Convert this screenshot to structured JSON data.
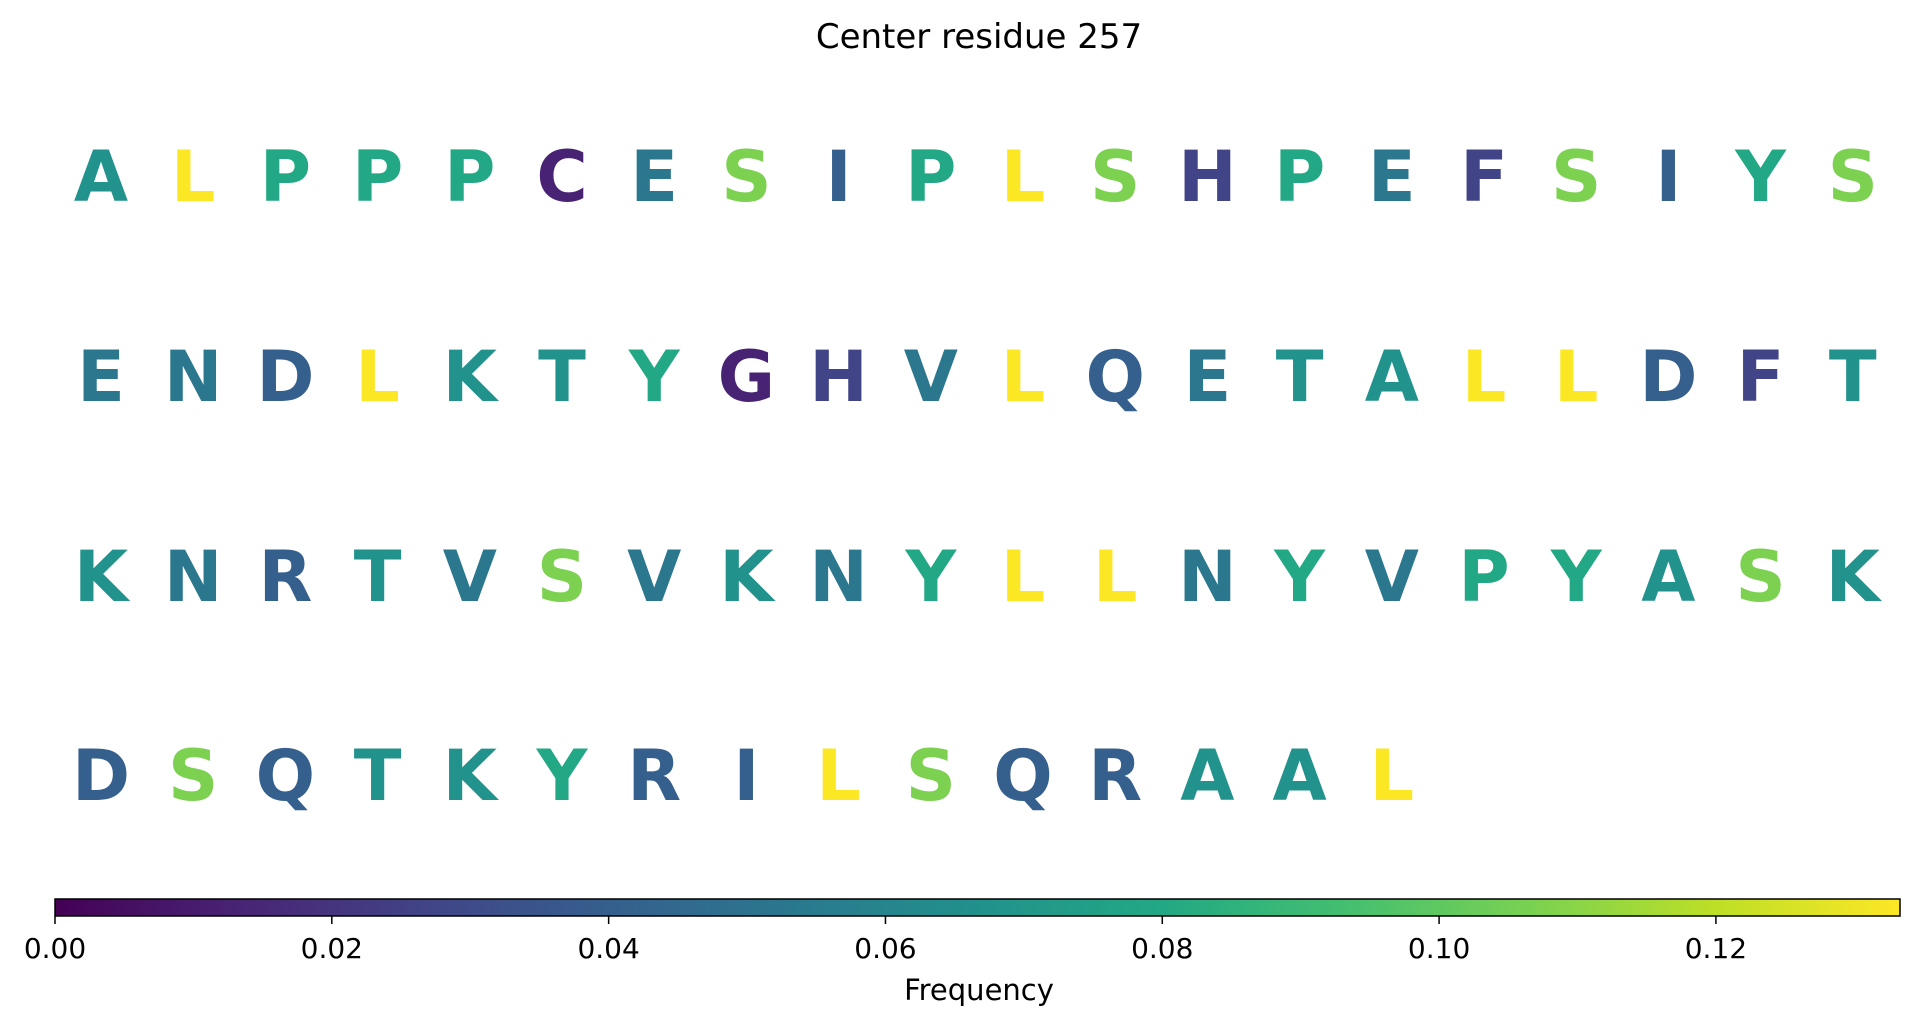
{
  "chart_data": {
    "type": "heatmap",
    "title": "Center residue 257",
    "colorbar": {
      "label": "Frequency",
      "range": [
        0,
        0.1333
      ],
      "ticks": [
        0.0,
        0.02,
        0.04,
        0.06,
        0.08,
        0.1,
        0.12
      ],
      "tick_labels": [
        "0.00",
        "0.02",
        "0.04",
        "0.06",
        "0.08",
        "0.10",
        "0.12"
      ],
      "colormap": "viridis",
      "orientation": "horizontal"
    },
    "rows": [
      [
        {
          "letter": "A",
          "value": 0.067
        },
        {
          "letter": "L",
          "value": 0.133
        },
        {
          "letter": "P",
          "value": 0.08
        },
        {
          "letter": "P",
          "value": 0.08
        },
        {
          "letter": "P",
          "value": 0.08
        },
        {
          "letter": "C",
          "value": 0.013
        },
        {
          "letter": "E",
          "value": 0.053
        },
        {
          "letter": "S",
          "value": 0.107
        },
        {
          "letter": "I",
          "value": 0.04
        },
        {
          "letter": "P",
          "value": 0.08
        },
        {
          "letter": "L",
          "value": 0.133
        },
        {
          "letter": "S",
          "value": 0.107
        },
        {
          "letter": "H",
          "value": 0.027
        },
        {
          "letter": "P",
          "value": 0.08
        },
        {
          "letter": "E",
          "value": 0.053
        },
        {
          "letter": "F",
          "value": 0.027
        },
        {
          "letter": "S",
          "value": 0.107
        },
        {
          "letter": "I",
          "value": 0.04
        },
        {
          "letter": "Y",
          "value": 0.08
        },
        {
          "letter": "S",
          "value": 0.107
        }
      ],
      [
        {
          "letter": "E",
          "value": 0.053
        },
        {
          "letter": "N",
          "value": 0.053
        },
        {
          "letter": "D",
          "value": 0.04
        },
        {
          "letter": "L",
          "value": 0.133
        },
        {
          "letter": "K",
          "value": 0.067
        },
        {
          "letter": "T",
          "value": 0.067
        },
        {
          "letter": "Y",
          "value": 0.08
        },
        {
          "letter": "G",
          "value": 0.013
        },
        {
          "letter": "H",
          "value": 0.027
        },
        {
          "letter": "V",
          "value": 0.053
        },
        {
          "letter": "L",
          "value": 0.133
        },
        {
          "letter": "Q",
          "value": 0.04
        },
        {
          "letter": "E",
          "value": 0.053
        },
        {
          "letter": "T",
          "value": 0.067
        },
        {
          "letter": "A",
          "value": 0.067
        },
        {
          "letter": "L",
          "value": 0.133
        },
        {
          "letter": "L",
          "value": 0.133
        },
        {
          "letter": "D",
          "value": 0.04
        },
        {
          "letter": "F",
          "value": 0.027
        },
        {
          "letter": "T",
          "value": 0.067
        }
      ],
      [
        {
          "letter": "K",
          "value": 0.067
        },
        {
          "letter": "N",
          "value": 0.053
        },
        {
          "letter": "R",
          "value": 0.04
        },
        {
          "letter": "T",
          "value": 0.067
        },
        {
          "letter": "V",
          "value": 0.053
        },
        {
          "letter": "S",
          "value": 0.107
        },
        {
          "letter": "V",
          "value": 0.053
        },
        {
          "letter": "K",
          "value": 0.067
        },
        {
          "letter": "N",
          "value": 0.053
        },
        {
          "letter": "Y",
          "value": 0.08
        },
        {
          "letter": "L",
          "value": 0.133
        },
        {
          "letter": "L",
          "value": 0.133
        },
        {
          "letter": "N",
          "value": 0.053
        },
        {
          "letter": "Y",
          "value": 0.08
        },
        {
          "letter": "V",
          "value": 0.053
        },
        {
          "letter": "P",
          "value": 0.08
        },
        {
          "letter": "Y",
          "value": 0.08
        },
        {
          "letter": "A",
          "value": 0.067
        },
        {
          "letter": "S",
          "value": 0.107
        },
        {
          "letter": "K",
          "value": 0.067
        }
      ],
      [
        {
          "letter": "D",
          "value": 0.04
        },
        {
          "letter": "S",
          "value": 0.107
        },
        {
          "letter": "Q",
          "value": 0.04
        },
        {
          "letter": "T",
          "value": 0.067
        },
        {
          "letter": "K",
          "value": 0.067
        },
        {
          "letter": "Y",
          "value": 0.08
        },
        {
          "letter": "R",
          "value": 0.04
        },
        {
          "letter": "I",
          "value": 0.04
        },
        {
          "letter": "L",
          "value": 0.133
        },
        {
          "letter": "S",
          "value": 0.107
        },
        {
          "letter": "Q",
          "value": 0.04
        },
        {
          "letter": "R",
          "value": 0.04
        },
        {
          "letter": "A",
          "value": 0.067
        },
        {
          "letter": "A",
          "value": 0.067
        },
        {
          "letter": "L",
          "value": 0.133
        }
      ]
    ]
  }
}
